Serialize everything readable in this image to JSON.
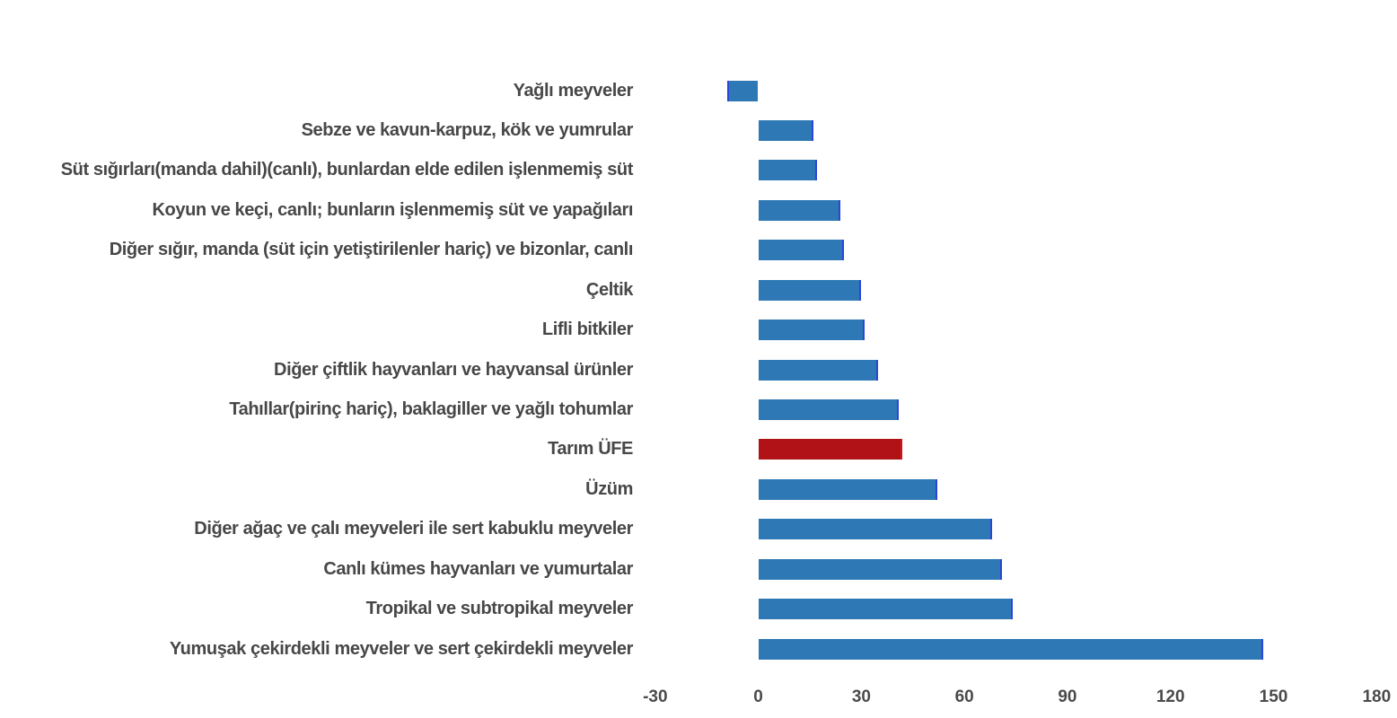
{
  "chart_data": {
    "type": "bar",
    "orientation": "horizontal",
    "title": "",
    "categories": [
      "Yağlı meyveler",
      "Sebze ve kavun-karpuz, kök ve yumrular",
      "Süt sığırları(manda dahil)(canlı), bunlardan elde edilen işlenmemiş süt",
      "Koyun ve keçi, canlı; bunların işlenmemiş süt ve yapağıları",
      "Diğer sığır, manda (süt için yetiştirilenler hariç) ve bizonlar, canlı",
      "Çeltik",
      "Lifli bitkiler",
      "Diğer çiftlik hayvanları ve hayvansal ürünler",
      "Tahıllar(pirinç hariç), baklagiller ve yağlı tohumlar",
      "Tarım ÜFE",
      "Üzüm",
      "Diğer ağaç ve çalı meyveleri ile sert kabuklu meyveler",
      "Canlı kümes hayvanları ve yumurtalar",
      "Tropikal ve subtropikal meyveler",
      "Yumuşak çekirdekli meyveler ve sert çekirdekli meyveler"
    ],
    "values": [
      -9,
      16,
      17,
      24,
      25,
      30,
      31,
      35,
      41,
      42,
      52,
      68,
      71,
      74,
      147
    ],
    "highlight_category": "Tarım ÜFE",
    "highlight_index": 9,
    "xlim": [
      -30,
      180
    ],
    "xticks": [
      -30,
      0,
      30,
      60,
      90,
      120,
      150,
      180
    ],
    "xlabel": "",
    "ylabel": "",
    "grid": false,
    "legend": "none",
    "colors": {
      "bar": "#2e79b5",
      "bar_edge": "#2b45d6",
      "highlight_bar": "#b01218",
      "highlight_edge": "#d41318",
      "label_text": "#474747",
      "tick_text": "#4a4a4a",
      "background": "#ffffff"
    }
  }
}
